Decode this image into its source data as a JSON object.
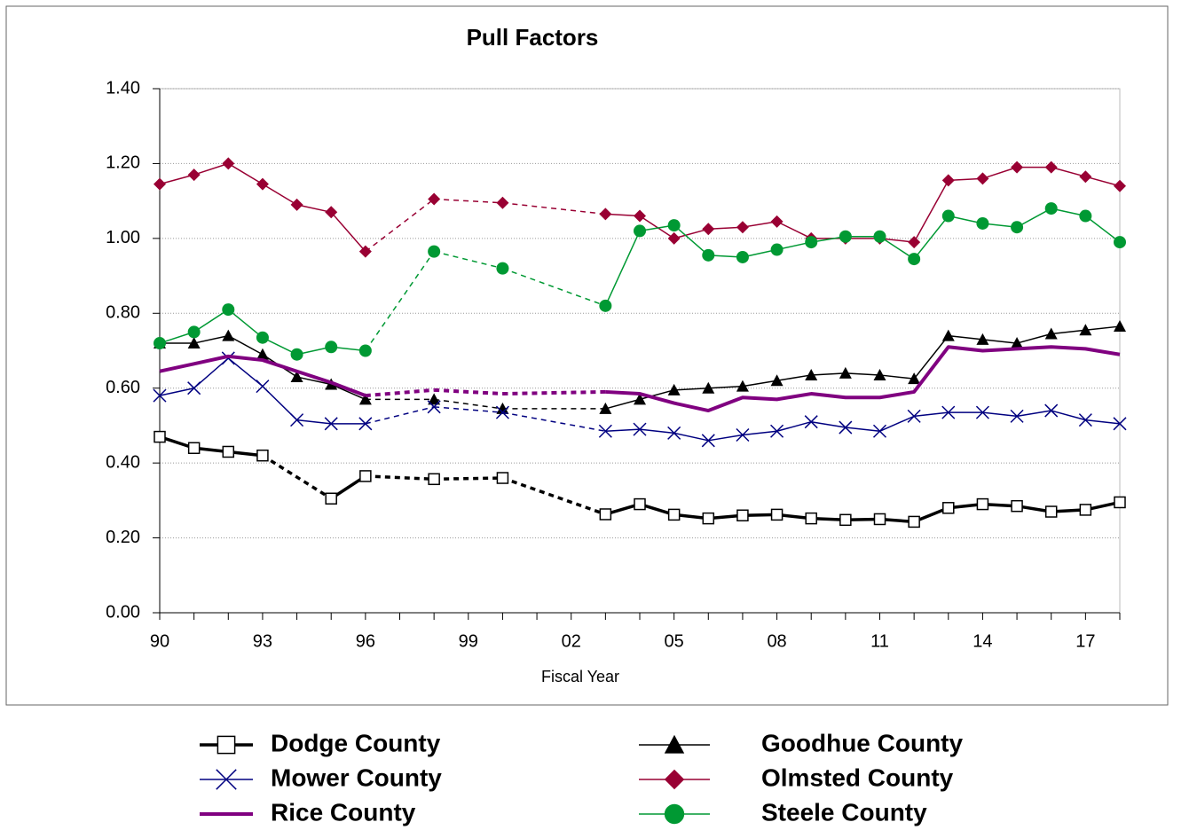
{
  "chart_data": {
    "type": "line",
    "title": "Pull Factors",
    "x_label": "Fiscal Year",
    "categories": [
      "90",
      null,
      null,
      "93",
      null,
      null,
      "96",
      null,
      null,
      "99",
      null,
      null,
      "02",
      null,
      null,
      "05",
      null,
      null,
      "08",
      null,
      null,
      "11",
      null,
      null,
      "14",
      null,
      null,
      "17",
      null
    ],
    "ylim": [
      0,
      1.4
    ],
    "yticks": [
      {
        "value": 0,
        "label": "0.00"
      },
      {
        "value": 0.2,
        "label": "0.20"
      },
      {
        "value": 0.4,
        "label": "0.40"
      },
      {
        "value": 0.6,
        "label": "0.60"
      },
      {
        "value": 0.8,
        "label": "0.80"
      },
      {
        "value": 1.0,
        "label": "1.00"
      },
      {
        "value": 1.2,
        "label": "1.20"
      },
      {
        "value": 1.4,
        "label": "1.40"
      }
    ],
    "grid": true,
    "series": [
      {
        "name": "Dodge County",
        "color": "#000000",
        "marker": "square",
        "width": 3.5,
        "values": [
          0.47,
          0.44,
          0.43,
          0.42,
          null,
          0.305,
          0.365,
          null,
          0.357,
          null,
          0.36,
          null,
          null,
          0.263,
          0.29,
          0.262,
          0.252,
          0.26,
          0.262,
          0.252,
          0.248,
          0.25,
          0.243,
          0.28,
          0.29,
          0.285,
          0.27,
          0.275,
          0.295
        ]
      },
      {
        "name": "Goodhue County",
        "color": "#000000",
        "marker": "triangle",
        "width": 1.5,
        "values": [
          0.72,
          0.72,
          0.74,
          0.69,
          0.63,
          0.61,
          0.57,
          null,
          0.57,
          null,
          0.545,
          null,
          null,
          0.545,
          0.57,
          0.595,
          0.6,
          0.605,
          0.62,
          0.635,
          0.64,
          0.635,
          0.625,
          0.74,
          0.73,
          0.72,
          0.745,
          0.755,
          0.765
        ]
      },
      {
        "name": "Mower County",
        "color": "#000080",
        "marker": "x",
        "width": 1.5,
        "values": [
          0.58,
          0.6,
          0.68,
          0.605,
          0.515,
          0.505,
          0.505,
          null,
          0.55,
          null,
          0.535,
          null,
          null,
          0.485,
          0.49,
          0.48,
          0.46,
          0.475,
          0.485,
          0.51,
          0.495,
          0.485,
          0.525,
          0.535,
          0.535,
          0.525,
          0.54,
          0.515,
          0.505
        ]
      },
      {
        "name": "Olmsted County",
        "color": "#990033",
        "marker": "diamond",
        "width": 1.5,
        "values": [
          1.145,
          1.17,
          1.2,
          1.145,
          1.09,
          1.07,
          0.965,
          null,
          1.105,
          null,
          1.095,
          null,
          null,
          1.065,
          1.06,
          1.0,
          1.025,
          1.03,
          1.045,
          1.0,
          1.0,
          1.0,
          0.99,
          1.155,
          1.16,
          1.19,
          1.19,
          1.165,
          1.14
        ]
      },
      {
        "name": "Rice County",
        "color": "#800080",
        "marker": "none",
        "width": 4,
        "values": [
          0.645,
          0.665,
          0.685,
          0.675,
          0.645,
          0.615,
          0.58,
          null,
          0.595,
          null,
          0.585,
          null,
          null,
          0.59,
          0.585,
          0.56,
          0.54,
          0.575,
          0.57,
          0.585,
          0.575,
          0.575,
          0.59,
          0.71,
          0.7,
          0.705,
          0.71,
          0.705,
          0.69
        ]
      },
      {
        "name": "Steele County",
        "color": "#009933",
        "marker": "circle",
        "width": 1.5,
        "values": [
          0.72,
          0.75,
          0.81,
          0.735,
          0.69,
          0.71,
          0.7,
          null,
          0.965,
          null,
          0.92,
          null,
          null,
          0.82,
          1.02,
          1.035,
          0.955,
          0.95,
          0.97,
          0.99,
          1.005,
          1.005,
          0.945,
          1.06,
          1.04,
          1.03,
          1.08,
          1.06,
          0.99
        ]
      }
    ]
  }
}
